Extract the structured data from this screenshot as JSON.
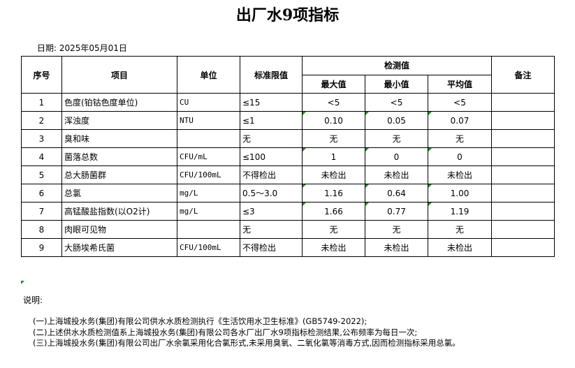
{
  "title": "出厂水9项指标",
  "date": "日期: 2025年05月01日",
  "headers": {
    "no": "序号",
    "item": "项目",
    "unit": "单位",
    "limit": "标准限值",
    "measured": "检测值",
    "max": "最大值",
    "min": "最小值",
    "avg": "平均值",
    "remark": "备注"
  },
  "rows": [
    {
      "no": "1",
      "item": "色度(铂钴色度单位)",
      "unit": "CU",
      "limit": "≤15",
      "max": "<5",
      "min": "<5",
      "avg": "<5"
    },
    {
      "no": "2",
      "item": "浑浊度",
      "unit": "NTU",
      "limit": "≤1",
      "max": "0.10",
      "min": "0.05",
      "avg": "0.07"
    },
    {
      "no": "3",
      "item": "臭和味",
      "unit": "",
      "limit": "无",
      "max": "无",
      "min": "无",
      "avg": "无"
    },
    {
      "no": "4",
      "item": "菌落总数",
      "unit": "CFU/mL",
      "limit": "≤100",
      "max": "1",
      "min": "0",
      "avg": "0"
    },
    {
      "no": "5",
      "item": "总大肠菌群",
      "unit": "CFU/100mL",
      "limit": "不得检出",
      "max": "未检出",
      "min": "未检出",
      "avg": "未检出"
    },
    {
      "no": "6",
      "item": "总氯",
      "unit": "mg/L",
      "limit": "0.5～3.0",
      "max": "1.16",
      "min": "0.64",
      "avg": "1.00"
    },
    {
      "no": "7",
      "item": "高锰酸盐指数(以O2计)",
      "unit": "mg/L",
      "limit": "≤3",
      "max": "1.66",
      "min": "0.77",
      "avg": "1.19"
    },
    {
      "no": "8",
      "item": "肉眼可见物",
      "unit": "",
      "limit": "无",
      "max": "无",
      "min": "无",
      "avg": "无"
    },
    {
      "no": "9",
      "item": "大肠埃希氏菌",
      "unit": "CFU/100mL",
      "limit": "不得检出",
      "max": "未检出",
      "min": "未检出",
      "avg": "未检出"
    }
  ],
  "notes": {
    "label": "说明:",
    "lines": [
      "(一)上海城投水务(集团)有限公司供水水质检测执行《生活饮用水卫生标准》(GB5749-2022);",
      "(二)上述供水水质检测值系上海城投水务(集团)有限公司各水厂出厂水9项指标检测结果,公布频率为每日一次;",
      "(三)上海城投水务(集团)有限公司出厂水余氯采用化合氯形式,未采用臭氧、二氧化氯等消毒方式,因而检测指标采用总氯。"
    ]
  },
  "colors": {
    "marker": "#1a8a1a"
  }
}
